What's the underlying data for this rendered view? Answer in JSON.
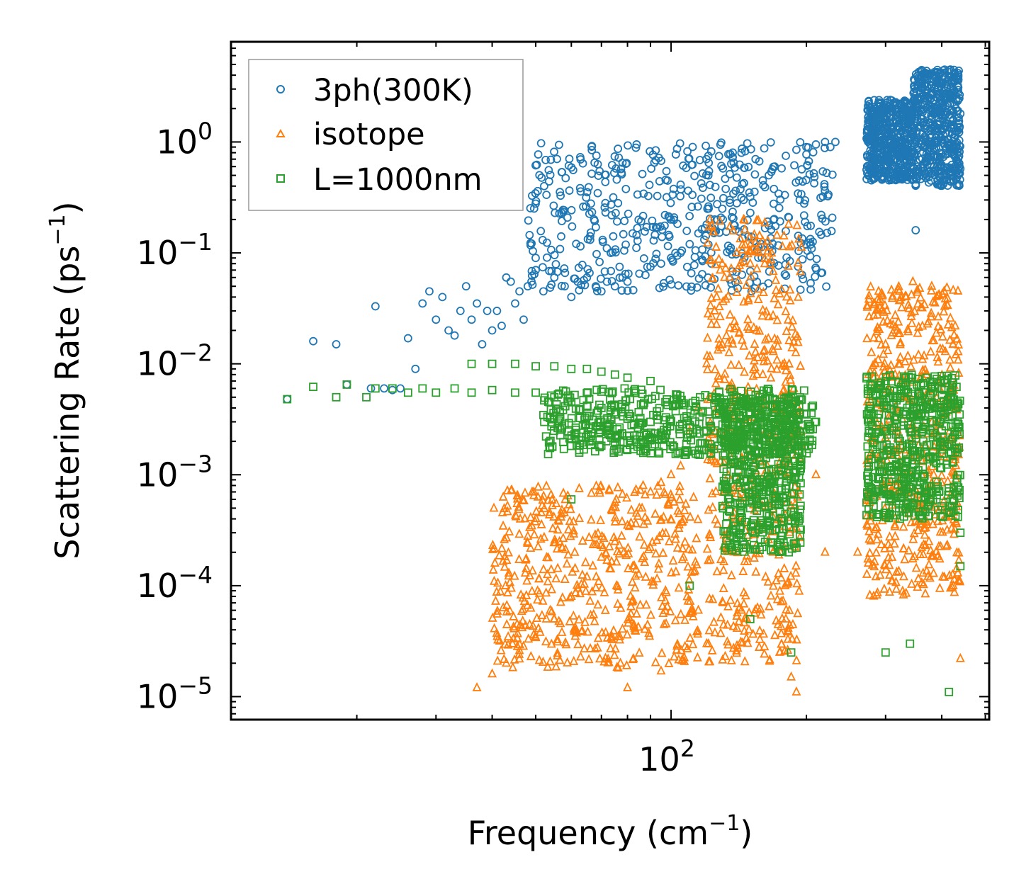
{
  "chart_data": {
    "type": "scatter",
    "title": "",
    "xlabel": "Frequency (cm",
    "xlabel_sup": "−1",
    "xlabel_end": ")",
    "ylabel": "Scattering Rate (ps",
    "ylabel_sup": "−1",
    "ylabel_end": ")",
    "xscale": "log",
    "yscale": "log",
    "xlim": [
      10.5,
      510
    ],
    "ylim": [
      6.2e-06,
      8.0
    ],
    "x_tick_labels": [
      {
        "value": 100,
        "base": "10",
        "exp": "2"
      }
    ],
    "y_tick_labels": [
      {
        "value": 1,
        "base": "10",
        "exp": "0"
      },
      {
        "value": 0.1,
        "base": "10",
        "exp": "−1"
      },
      {
        "value": 0.01,
        "base": "10",
        "exp": "−2"
      },
      {
        "value": 0.001,
        "base": "10",
        "exp": "−3"
      },
      {
        "value": 0.0001,
        "base": "10",
        "exp": "−4"
      },
      {
        "value": 1e-05,
        "base": "10",
        "exp": "−5"
      }
    ],
    "legend_position": "upper-left",
    "series": [
      {
        "name": "3ph(300K)",
        "marker": "circle",
        "color": "#1f77b4",
        "points": [
          [
            14,
            0.0048
          ],
          [
            16,
            0.016
          ],
          [
            18,
            0.015
          ],
          [
            19,
            0.0065
          ],
          [
            21.5,
            0.006
          ],
          [
            22,
            0.033
          ],
          [
            23,
            0.006
          ],
          [
            24,
            0.0058
          ],
          [
            25,
            0.006
          ],
          [
            26,
            0.017
          ],
          [
            27,
            0.009
          ],
          [
            28,
            0.035
          ],
          [
            29,
            0.045
          ],
          [
            30,
            0.025
          ],
          [
            31,
            0.04
          ],
          [
            32,
            0.02
          ],
          [
            33,
            0.018
          ],
          [
            34,
            0.03
          ],
          [
            35,
            0.05
          ],
          [
            36,
            0.025
          ],
          [
            37,
            0.035
          ],
          [
            38,
            0.015
          ],
          [
            39,
            0.03
          ],
          [
            40,
            0.02
          ],
          [
            41,
            0.03
          ],
          [
            42,
            0.022
          ],
          [
            43,
            0.06
          ],
          [
            44,
            0.055
          ],
          [
            45,
            0.035
          ],
          [
            46,
            0.045
          ],
          [
            47,
            0.025
          ],
          [
            48,
            0.05
          ],
          [
            50,
            0.07
          ],
          [
            52,
            0.045
          ],
          [
            55,
            0.06
          ],
          [
            58,
            0.05
          ],
          [
            60,
            0.04
          ],
          [
            62,
            0.055
          ],
          [
            65,
            0.06
          ],
          [
            68,
            0.05
          ],
          [
            70,
            0.045
          ],
          [
            72,
            0.055
          ],
          [
            75,
            0.05
          ],
          [
            78,
            0.06
          ],
          [
            80,
            0.055
          ],
          [
            85,
            0.065
          ],
          [
            90,
            0.075
          ],
          [
            95,
            0.08
          ],
          [
            100,
            0.09
          ],
          [
            105,
            0.1
          ],
          [
            110,
            0.12
          ],
          [
            115,
            0.15
          ],
          [
            120,
            0.18
          ],
          [
            125,
            0.2
          ],
          [
            130,
            0.25
          ],
          [
            135,
            0.3
          ],
          [
            140,
            0.28
          ],
          [
            145,
            0.3
          ],
          [
            150,
            0.32
          ],
          [
            160,
            0.45
          ],
          [
            170,
            0.6
          ],
          [
            180,
            0.75
          ],
          [
            190,
            0.85
          ],
          [
            200,
            0.9
          ],
          [
            210,
            0.95
          ],
          [
            220,
            1.0
          ],
          [
            232,
            1.0
          ],
          [
            275,
            2.3
          ],
          [
            285,
            2.0
          ],
          [
            295,
            1.5
          ],
          [
            305,
            1.2
          ],
          [
            315,
            1.0
          ],
          [
            325,
            0.8
          ],
          [
            335,
            0.6
          ],
          [
            345,
            0.5
          ],
          [
            355,
            0.55
          ],
          [
            365,
            0.9
          ],
          [
            375,
            1.5
          ],
          [
            385,
            1.8
          ],
          [
            395,
            2.2
          ],
          [
            405,
            2.5
          ],
          [
            412,
            3.5
          ],
          [
            418,
            4.5
          ],
          [
            422,
            2.5
          ],
          [
            430,
            2.0
          ],
          [
            440,
            1.8
          ],
          [
            350,
            0.16
          ]
        ],
        "bands": [
          {
            "x0": 48,
            "x1": 230,
            "y0": 0.045,
            "y1": 1.0
          },
          {
            "x0": 272,
            "x1": 345,
            "y0": 0.45,
            "y1": 2.4
          },
          {
            "x0": 345,
            "x1": 440,
            "y0": 0.4,
            "y1": 4.5
          }
        ]
      },
      {
        "name": "isotope",
        "marker": "triangle",
        "color": "#ff7f0e",
        "points": [
          [
            37,
            1.2e-05
          ],
          [
            40,
            1.6e-05
          ],
          [
            43,
            2e-05
          ],
          [
            46,
            2.6e-05
          ],
          [
            50,
            3.4e-05
          ],
          [
            55,
            5e-05
          ],
          [
            60,
            8e-05
          ],
          [
            65,
            0.00012
          ],
          [
            70,
            0.00018
          ],
          [
            75,
            0.00025
          ],
          [
            80,
            0.00035
          ],
          [
            85,
            0.0005
          ],
          [
            90,
            0.0007
          ],
          [
            95,
            0.00085
          ],
          [
            100,
            0.001
          ],
          [
            105,
            0.0012
          ],
          [
            110,
            0.0025
          ],
          [
            115,
            0.004
          ],
          [
            120,
            0.01
          ],
          [
            125,
            0.03
          ],
          [
            130,
            0.08
          ],
          [
            135,
            0.06
          ],
          [
            140,
            0.1
          ],
          [
            145,
            0.2
          ],
          [
            150,
            0.08
          ],
          [
            155,
            0.02
          ],
          [
            160,
            0.008
          ],
          [
            165,
            0.002
          ],
          [
            170,
            0.0006
          ],
          [
            175,
            0.0002
          ],
          [
            180,
            5e-05
          ],
          [
            185,
            1.5e-05
          ],
          [
            190,
            1.1e-05
          ],
          [
            210,
            0.001
          ],
          [
            220,
            0.0002
          ],
          [
            260,
            0.0002
          ],
          [
            275,
            0.008
          ],
          [
            285,
            0.01
          ],
          [
            300,
            0.015
          ],
          [
            315,
            0.008
          ],
          [
            330,
            0.005
          ],
          [
            345,
            0.055
          ],
          [
            355,
            0.012
          ],
          [
            370,
            0.008
          ],
          [
            380,
            0.05
          ],
          [
            395,
            0.006
          ],
          [
            410,
            0.005
          ],
          [
            430,
            0.0007
          ],
          [
            440,
            2.2e-05
          ],
          [
            95,
            1.7e-05
          ],
          [
            80,
            1.2e-05
          ],
          [
            115,
            6e-05
          ],
          [
            120,
            3e-05
          ]
        ],
        "bands": [
          {
            "x0": 40,
            "x1": 115,
            "y0": 1.8e-05,
            "y1": 0.0008
          },
          {
            "x0": 120,
            "x1": 195,
            "y0": 2e-05,
            "y1": 0.2
          },
          {
            "x0": 272,
            "x1": 440,
            "y0": 8e-05,
            "y1": 0.05
          }
        ]
      },
      {
        "name": "L=1000nm",
        "marker": "square",
        "color": "#2ca02c",
        "points": [
          [
            14,
            0.0048
          ],
          [
            16,
            0.0062
          ],
          [
            18,
            0.005
          ],
          [
            19,
            0.0065
          ],
          [
            21,
            0.005
          ],
          [
            22,
            0.006
          ],
          [
            24,
            0.006
          ],
          [
            26,
            0.0055
          ],
          [
            28,
            0.006
          ],
          [
            30,
            0.0055
          ],
          [
            33,
            0.006
          ],
          [
            36,
            0.0055
          ],
          [
            40,
            0.0058
          ],
          [
            45,
            0.0055
          ],
          [
            50,
            0.0055
          ],
          [
            55,
            0.005
          ],
          [
            60,
            0.0045
          ],
          [
            65,
            0.0042
          ],
          [
            70,
            0.004
          ],
          [
            75,
            0.0035
          ],
          [
            80,
            0.0032
          ],
          [
            90,
            0.003
          ],
          [
            100,
            0.003
          ],
          [
            110,
            0.0028
          ],
          [
            120,
            0.0025
          ],
          [
            130,
            0.002
          ],
          [
            140,
            0.0015
          ],
          [
            150,
            0.0005
          ],
          [
            160,
            0.003
          ],
          [
            170,
            0.0025
          ],
          [
            180,
            0.0008
          ],
          [
            190,
            0.0025
          ],
          [
            200,
            0.0035
          ],
          [
            210,
            0.003
          ],
          [
            275,
            0.003
          ],
          [
            290,
            0.0035
          ],
          [
            310,
            0.0025
          ],
          [
            330,
            0.003
          ],
          [
            345,
            0.0015
          ],
          [
            360,
            0.0035
          ],
          [
            380,
            0.003
          ],
          [
            400,
            0.0025
          ],
          [
            420,
            0.005
          ],
          [
            430,
            0.004
          ],
          [
            36,
            0.01
          ],
          [
            40,
            0.01
          ],
          [
            45,
            0.01
          ],
          [
            50,
            0.0095
          ],
          [
            55,
            0.0095
          ],
          [
            60,
            0.009
          ],
          [
            65,
            0.009
          ],
          [
            70,
            0.0085
          ],
          [
            75,
            0.008
          ],
          [
            80,
            0.0075
          ],
          [
            90,
            0.007
          ],
          [
            60,
            0.0006
          ],
          [
            110,
            0.0001
          ],
          [
            150,
            5e-05
          ],
          [
            185,
            2.5e-05
          ],
          [
            300,
            2.5e-05
          ],
          [
            340,
            3e-05
          ],
          [
            415,
            1.1e-05
          ],
          [
            440,
            0.0003
          ],
          [
            440,
            0.00015
          ]
        ],
        "bands": [
          {
            "x0": 52,
            "x1": 210,
            "y0": 0.0015,
            "y1": 0.006
          },
          {
            "x0": 130,
            "x1": 195,
            "y0": 0.0002,
            "y1": 0.005
          },
          {
            "x0": 272,
            "x1": 440,
            "y0": 0.0004,
            "y1": 0.008
          }
        ]
      }
    ]
  }
}
